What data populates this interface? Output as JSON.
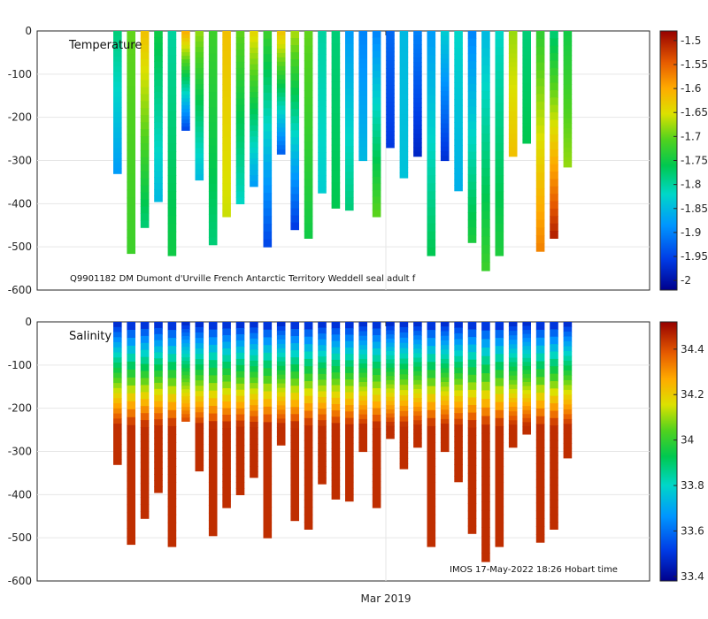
{
  "chart_data": [
    {
      "type": "heatmap",
      "title": "Temperature",
      "annotation": "Q9901182 DM Dumont d'Urville French Antarctic Territory Weddell seal adult f",
      "ylim": [
        -600,
        0
      ],
      "yticks": [
        0,
        -100,
        -200,
        -300,
        -400,
        -500,
        -600
      ],
      "ytick_labels": [
        "0",
        "-100",
        "-200",
        "-300",
        "-400",
        "-500",
        "-600"
      ],
      "colorbar": {
        "range": [
          -2.02,
          -1.48
        ],
        "ticks": [
          -1.5,
          -1.55,
          -1.6,
          -1.65,
          -1.7,
          -1.75,
          -1.8,
          -1.85,
          -1.9,
          -1.95,
          -2
        ],
        "tick_labels": [
          "-1.5",
          "-1.55",
          "-1.6",
          "-1.65",
          "-1.7",
          "-1.75",
          "-1.8",
          "-1.85",
          "-1.9",
          "-1.95",
          "-2"
        ]
      },
      "profiles": [
        {
          "max_depth": 330,
          "surface": -1.78,
          "bottom": -1.88
        },
        {
          "max_depth": 515,
          "surface": -1.7,
          "bottom": -1.72
        },
        {
          "max_depth": 455,
          "surface": -1.62,
          "bottom": -1.78
        },
        {
          "max_depth": 395,
          "surface": -1.75,
          "bottom": -1.85
        },
        {
          "max_depth": 520,
          "surface": -1.8,
          "bottom": -1.75
        },
        {
          "max_depth": 230,
          "surface": -1.6,
          "bottom": -1.95
        },
        {
          "max_depth": 345,
          "surface": -1.68,
          "bottom": -1.85
        },
        {
          "max_depth": 495,
          "surface": -1.72,
          "bottom": -1.78
        },
        {
          "max_depth": 430,
          "surface": -1.62,
          "bottom": -1.66
        },
        {
          "max_depth": 400,
          "surface": -1.7,
          "bottom": -1.82
        },
        {
          "max_depth": 360,
          "surface": -1.64,
          "bottom": -1.88
        },
        {
          "max_depth": 500,
          "surface": -1.72,
          "bottom": -1.95
        },
        {
          "max_depth": 285,
          "surface": -1.62,
          "bottom": -1.93
        },
        {
          "max_depth": 460,
          "surface": -1.67,
          "bottom": -1.96
        },
        {
          "max_depth": 480,
          "surface": -1.7,
          "bottom": -1.75
        },
        {
          "max_depth": 375,
          "surface": -1.8,
          "bottom": -1.83
        },
        {
          "max_depth": 410,
          "surface": -1.78,
          "bottom": -1.76
        },
        {
          "max_depth": 415,
          "surface": -1.88,
          "bottom": -1.78
        },
        {
          "max_depth": 300,
          "surface": -1.9,
          "bottom": -1.85
        },
        {
          "max_depth": 430,
          "surface": -1.9,
          "bottom": -1.7
        },
        {
          "max_depth": 270,
          "surface": -1.92,
          "bottom": -1.96
        },
        {
          "max_depth": 340,
          "surface": -1.85,
          "bottom": -1.84
        },
        {
          "max_depth": 290,
          "surface": -1.9,
          "bottom": -1.98
        },
        {
          "max_depth": 520,
          "surface": -1.88,
          "bottom": -1.76
        },
        {
          "max_depth": 300,
          "surface": -1.83,
          "bottom": -1.97
        },
        {
          "max_depth": 370,
          "surface": -1.82,
          "bottom": -1.86
        },
        {
          "max_depth": 490,
          "surface": -1.9,
          "bottom": -1.74
        },
        {
          "max_depth": 555,
          "surface": -1.85,
          "bottom": -1.72
        },
        {
          "max_depth": 520,
          "surface": -1.82,
          "bottom": -1.74
        },
        {
          "max_depth": 290,
          "surface": -1.68,
          "bottom": -1.62
        },
        {
          "max_depth": 260,
          "surface": -1.78,
          "bottom": -1.76
        },
        {
          "max_depth": 510,
          "surface": -1.73,
          "bottom": -1.57
        },
        {
          "max_depth": 480,
          "surface": -1.78,
          "bottom": -1.5
        },
        {
          "max_depth": 315,
          "surface": -1.75,
          "bottom": -1.68
        }
      ]
    },
    {
      "type": "heatmap",
      "title": "Salinity",
      "annotation": "IMOS 17-May-2022 18:26 Hobart time",
      "xlabel": "Mar 2019",
      "ylim": [
        -600,
        0
      ],
      "yticks": [
        0,
        -100,
        -200,
        -300,
        -400,
        -500,
        -600
      ],
      "ytick_labels": [
        "0",
        "-100",
        "-200",
        "-300",
        "-400",
        "-500",
        "-600"
      ],
      "colorbar": {
        "range": [
          33.38,
          34.52
        ],
        "ticks": [
          34.4,
          34.2,
          34,
          33.8,
          33.6,
          33.4
        ],
        "tick_labels": [
          "34.4",
          "34.2",
          "34",
          "33.8",
          "33.6",
          "33.4"
        ]
      },
      "surface_salinity": 33.45,
      "deep_salinity": 34.45
    }
  ],
  "x_tick_label": "Mar 2019"
}
